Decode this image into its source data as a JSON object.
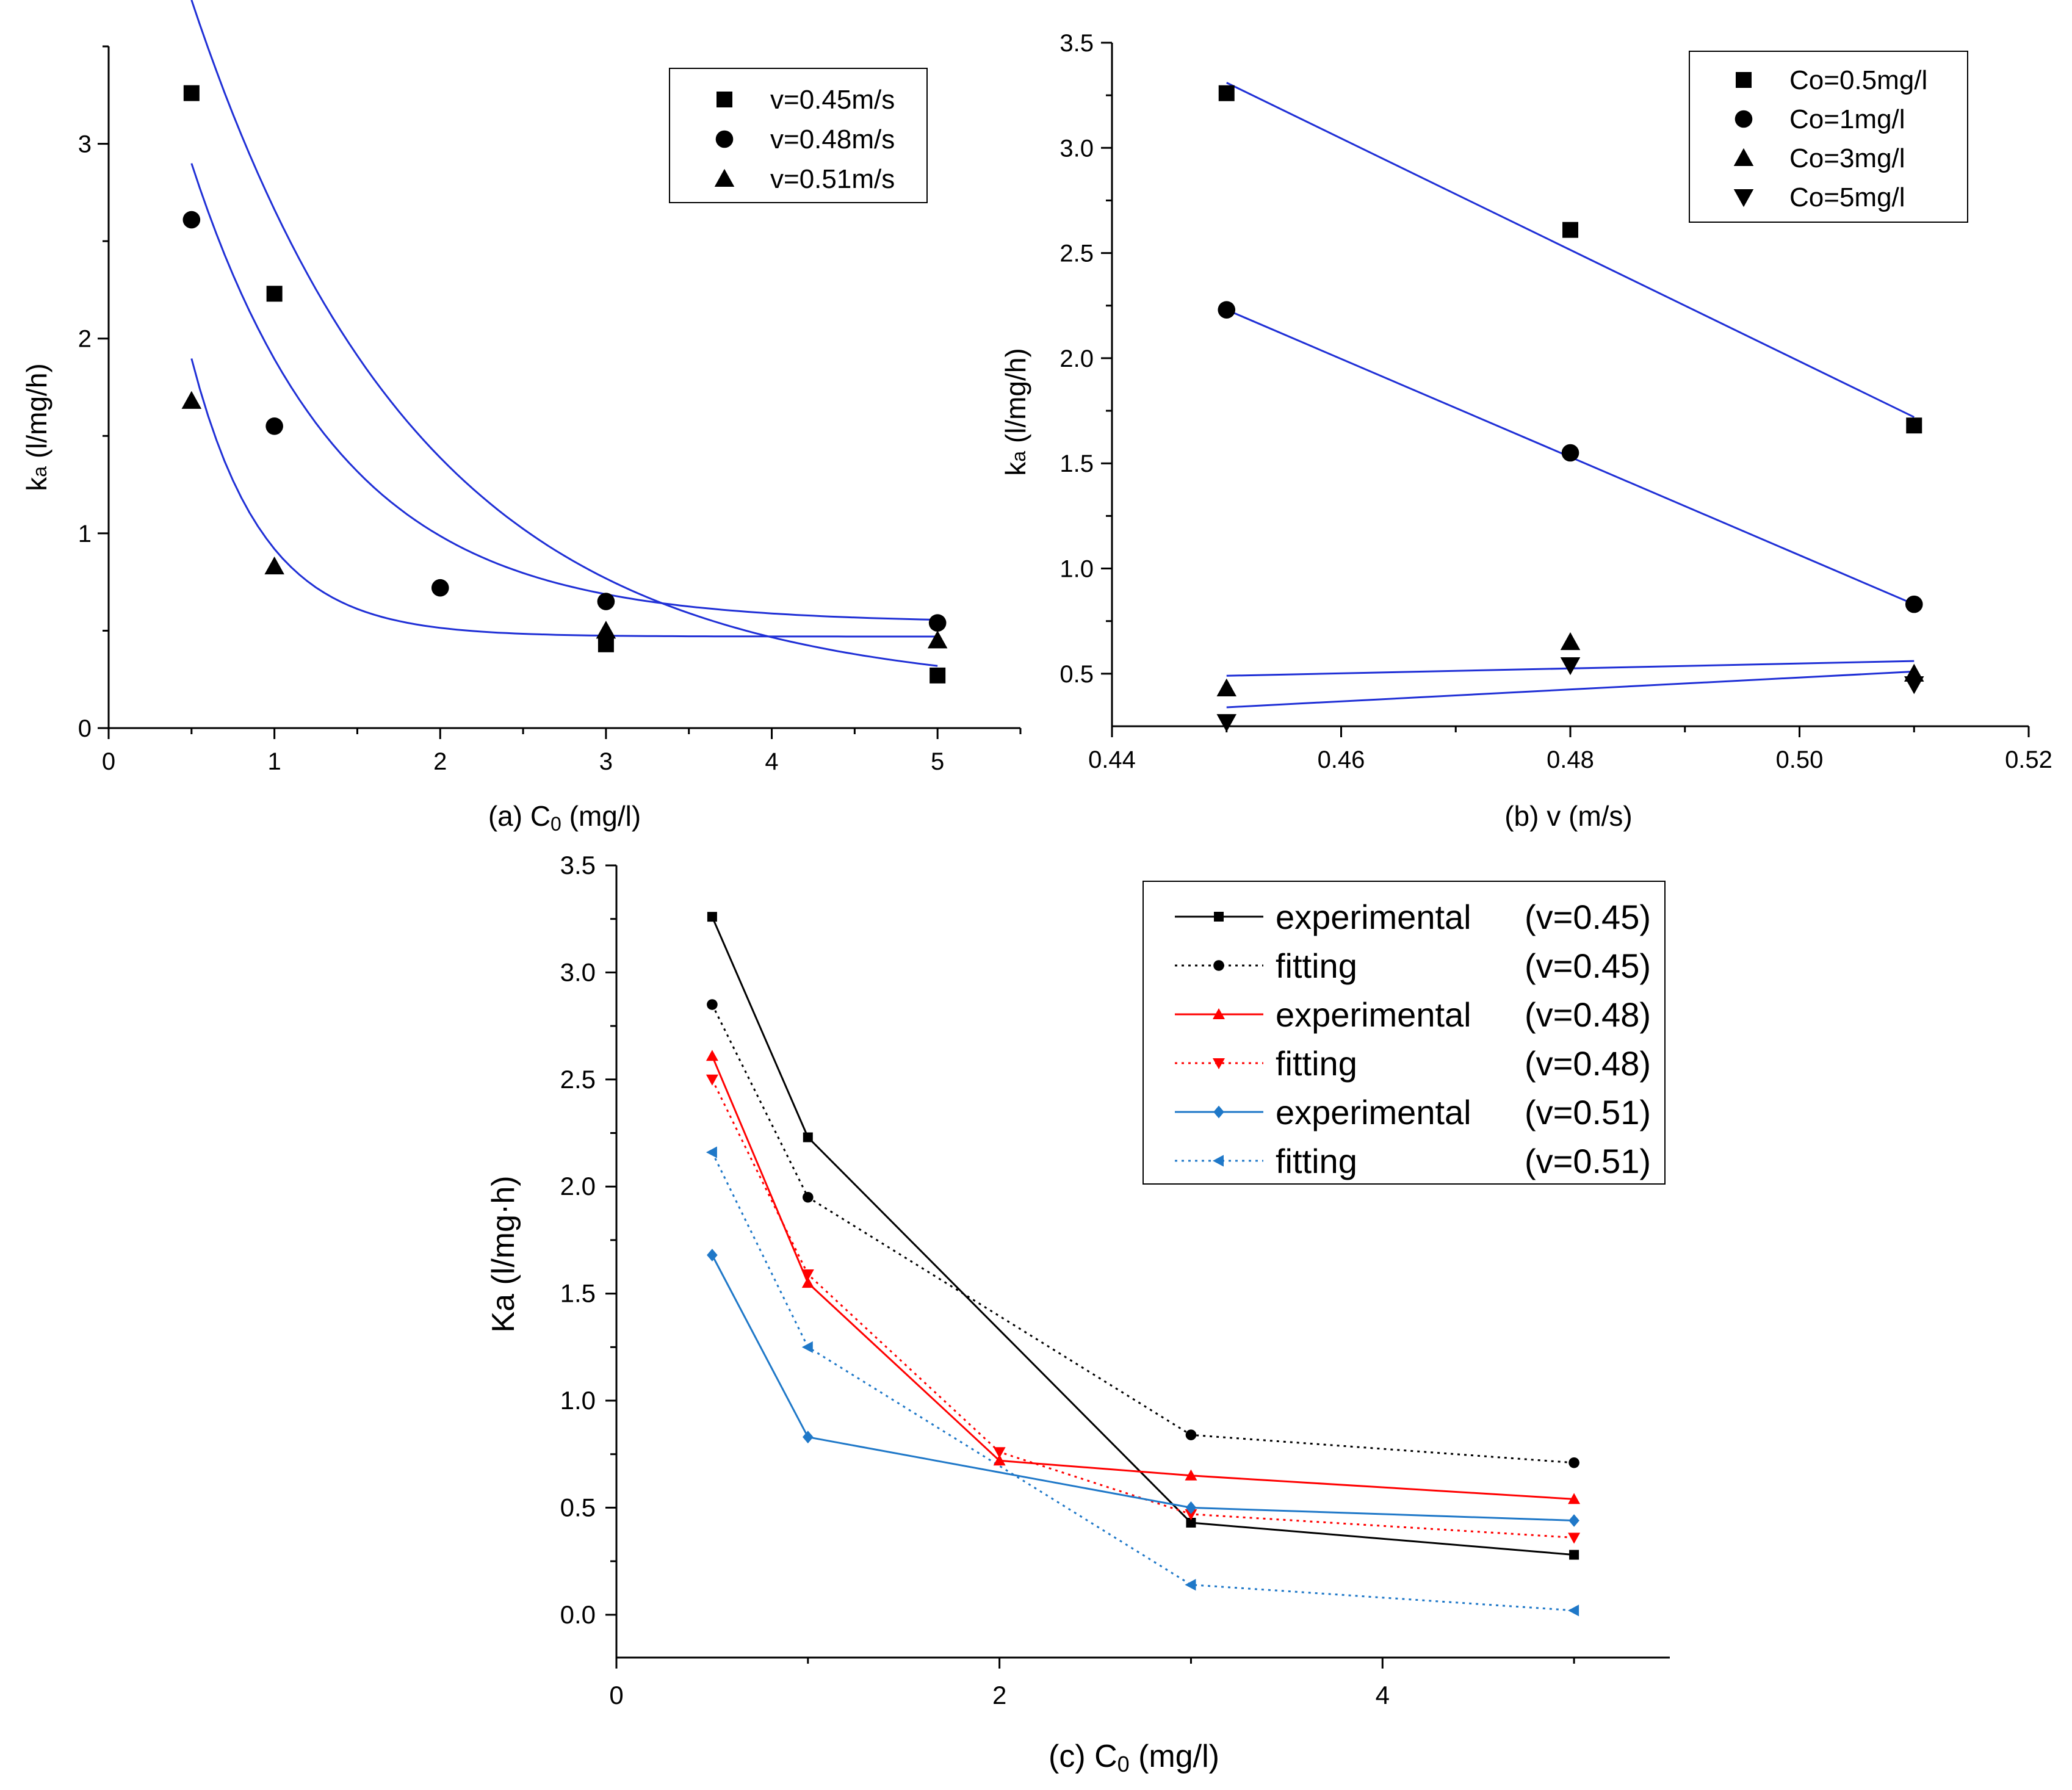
{
  "chart_data": [
    {
      "id": "a",
      "type": "scatter",
      "title": "",
      "caption": "(a)  C₀ (mg/l)",
      "caption_parts": {
        "prefix": "(a)  C",
        "sub": "0",
        "suffix": " (mg/l)"
      },
      "xlabel": "C₀ (mg/l)",
      "ylabel": "ka (l/mg/h)",
      "ylabel_parts": {
        "main": "k",
        "sub": "a",
        "rest": " (l/mg/h)"
      },
      "xlim": [
        0,
        5.5
      ],
      "ylim": [
        0,
        3.5
      ],
      "xticks": [
        0,
        1,
        2,
        3,
        4,
        5
      ],
      "xtick_labels": [
        "0",
        "1",
        "2",
        "3",
        "4",
        "5"
      ],
      "yticks": [
        0,
        1,
        2,
        3
      ],
      "ytick_labels": [
        "0",
        "1",
        "2",
        "3"
      ],
      "legend": "top-right",
      "grid": false,
      "series": [
        {
          "name": "v=0.45m/s",
          "marker": "square",
          "x": [
            0.5,
            1,
            3,
            5
          ],
          "y": [
            3.26,
            2.23,
            0.43,
            0.27
          ],
          "fit": {
            "a": 0.18,
            "b": 5.1,
            "k": 0.72
          }
        },
        {
          "name": "v=0.48m/s",
          "marker": "circle",
          "x": [
            0.5,
            1,
            2,
            3,
            5
          ],
          "y": [
            2.61,
            1.55,
            0.72,
            0.65,
            0.54
          ],
          "fit": {
            "a": 0.54,
            "b": 4.11,
            "k": 1.11
          }
        },
        {
          "name": "v=0.51m/s",
          "marker": "triangle-up",
          "x": [
            0.5,
            1,
            3,
            5
          ],
          "y": [
            1.68,
            0.83,
            0.5,
            0.45
          ],
          "fit": {
            "a": 0.47,
            "b": 4.53,
            "k": 2.31
          }
        }
      ]
    },
    {
      "id": "b",
      "type": "scatter",
      "title": "",
      "caption": "(b) v (m/s)",
      "xlabel": "v (m/s)",
      "ylabel": "ka (l/mg/h)",
      "ylabel_parts": {
        "main": "k",
        "sub": "a",
        "rest": " (l/mg/h)"
      },
      "xlim": [
        0.44,
        0.52
      ],
      "ylim": [
        0.25,
        3.5
      ],
      "xticks": [
        0.44,
        0.46,
        0.48,
        0.5,
        0.52
      ],
      "xtick_labels": [
        "0.44",
        "0.46",
        "0.48",
        "0.50",
        "0.52"
      ],
      "yticks": [
        0.5,
        1.0,
        1.5,
        2.0,
        2.5,
        3.0,
        3.5
      ],
      "ytick_labels": [
        "0.5",
        "1.0",
        "1.5",
        "2.0",
        "2.5",
        "3.0",
        "3.5"
      ],
      "legend": "top-right",
      "grid": false,
      "series": [
        {
          "name": "Co=0.5mg/l",
          "marker": "square",
          "x": [
            0.45,
            0.48,
            0.51
          ],
          "y": [
            3.26,
            2.61,
            1.68
          ],
          "fit": {
            "y0": 3.31,
            "y1": 1.72
          }
        },
        {
          "name": "Co=1mg/l",
          "marker": "circle",
          "x": [
            0.45,
            0.48,
            0.51
          ],
          "y": [
            2.23,
            1.55,
            0.83
          ],
          "fit": {
            "y0": 2.23,
            "y1": 0.83
          }
        },
        {
          "name": "Co=3mg/l",
          "marker": "triangle-up",
          "x": [
            0.45,
            0.48,
            0.51
          ],
          "y": [
            0.43,
            0.65,
            0.5
          ],
          "fit": {
            "y0": 0.49,
            "y1": 0.56
          }
        },
        {
          "name": "Co=5mg/l",
          "marker": "triangle-down",
          "x": [
            0.45,
            0.48,
            0.51
          ],
          "y": [
            0.27,
            0.54,
            0.45
          ],
          "fit": {
            "y0": 0.34,
            "y1": 0.51
          }
        }
      ]
    },
    {
      "id": "c",
      "type": "line",
      "title": "",
      "caption": "(c)  C₀ (mg/l)",
      "caption_parts": {
        "prefix": "(c)  C",
        "sub": "0",
        "suffix": " (mg/l)"
      },
      "xlabel": "C₀ (mg/l)",
      "ylabel": "Ka (l/mg·h)",
      "xlim": [
        0,
        5.5
      ],
      "ylim": [
        -0.2,
        3.5
      ],
      "xticks": [
        0,
        2,
        4
      ],
      "xtick_labels": [
        "0",
        "2",
        "4"
      ],
      "yticks": [
        0.0,
        0.5,
        1.0,
        1.5,
        2.0,
        2.5,
        3.0,
        3.5
      ],
      "ytick_labels": [
        "0.0",
        "0.5",
        "1.0",
        "1.5",
        "2.0",
        "2.5",
        "3.0",
        "3.5"
      ],
      "legend": "top-right",
      "grid": false,
      "x": [
        0.5,
        1,
        2,
        3,
        5
      ],
      "series": [
        {
          "name": "experimental",
          "label_left": "experimental",
          "label_right": "(v=0.45)",
          "color": "#000000",
          "style": "solid",
          "marker": "square",
          "x": [
            0.5,
            1,
            3,
            5
          ],
          "y": [
            3.26,
            2.23,
            0.43,
            0.28
          ]
        },
        {
          "name": "fitting",
          "label_left": "fitting",
          "label_right": "(v=0.45)",
          "color": "#000000",
          "style": "dotted",
          "marker": "circle",
          "x": [
            0.5,
            1,
            3,
            5
          ],
          "y": [
            2.85,
            1.95,
            0.84,
            0.71
          ]
        },
        {
          "name": "experimental",
          "label_left": "experimental",
          "label_right": "(v=0.48)",
          "color": "#ff0000",
          "style": "solid",
          "marker": "triangle-up",
          "x": [
            0.5,
            1,
            2,
            3,
            5
          ],
          "y": [
            2.61,
            1.55,
            0.72,
            0.65,
            0.54
          ]
        },
        {
          "name": "fitting",
          "label_left": "fitting",
          "label_right": "(v=0.48)",
          "color": "#ff0000",
          "style": "dotted",
          "marker": "triangle-down",
          "x": [
            0.5,
            1,
            2,
            3,
            5
          ],
          "y": [
            2.5,
            1.59,
            0.76,
            0.47,
            0.36
          ]
        },
        {
          "name": "experimental",
          "label_left": "experimental",
          "label_right": "(v=0.51)",
          "color": "#1f78c8",
          "style": "solid",
          "marker": "diamond",
          "x": [
            0.5,
            1,
            3,
            5
          ],
          "y": [
            1.68,
            0.83,
            0.5,
            0.44
          ]
        },
        {
          "name": "fitting",
          "label_left": "fitting",
          "label_right": "(v=0.51)",
          "color": "#1f78c8",
          "style": "dotted",
          "marker": "triangle-left",
          "x": [
            0.5,
            1,
            3,
            5
          ],
          "y": [
            2.16,
            1.25,
            0.14,
            0.02
          ]
        }
      ]
    }
  ],
  "colors": {
    "fit_line": "#1f2fd6",
    "axis": "#000000",
    "marker": "#000000"
  }
}
